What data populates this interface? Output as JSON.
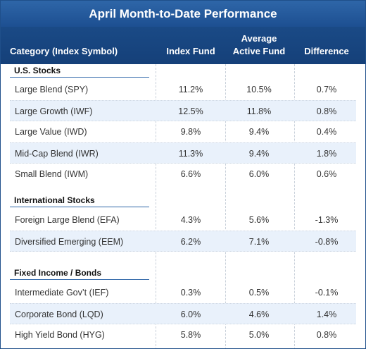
{
  "title": "April Month-to-Date Performance",
  "header": {
    "category": "Category (Index Symbol)",
    "index_fund": "Index Fund",
    "active_fund_line1": "Average",
    "active_fund_line2": "Active Fund",
    "difference": "Difference"
  },
  "sections": [
    {
      "title": "U.S. Stocks",
      "rows": [
        {
          "name": "Large Blend (SPY)",
          "index": "11.2%",
          "active": "10.5%",
          "diff": "0.7%"
        },
        {
          "name": "Large Growth (IWF)",
          "index": "12.5%",
          "active": "11.8%",
          "diff": "0.8%"
        },
        {
          "name": "Large Value (IWD)",
          "index": "9.8%",
          "active": "9.4%",
          "diff": "0.4%"
        },
        {
          "name": "Mid-Cap Blend (IWR)",
          "index": "11.3%",
          "active": "9.4%",
          "diff": "1.8%"
        },
        {
          "name": "Small Blend (IWM)",
          "index": "6.6%",
          "active": "6.0%",
          "diff": "0.6%"
        }
      ]
    },
    {
      "title": "International Stocks",
      "rows": [
        {
          "name": "Foreign Large Blend (EFA)",
          "index": "4.3%",
          "active": "5.6%",
          "diff": "-1.3%"
        },
        {
          "name": "Diversified Emerging (EEM)",
          "index": "6.2%",
          "active": "7.1%",
          "diff": "-0.8%"
        }
      ]
    },
    {
      "title": "Fixed Income / Bonds",
      "rows": [
        {
          "name": "Intermediate Gov’t (IEF)",
          "index": "0.3%",
          "active": "0.5%",
          "diff": "-0.1%"
        },
        {
          "name": "Corporate Bond (LQD)",
          "index": "6.0%",
          "active": "4.6%",
          "diff": "1.4%"
        },
        {
          "name": "High Yield Bond (HYG)",
          "index": "5.8%",
          "active": "5.0%",
          "diff": "0.8%"
        }
      ]
    }
  ]
}
